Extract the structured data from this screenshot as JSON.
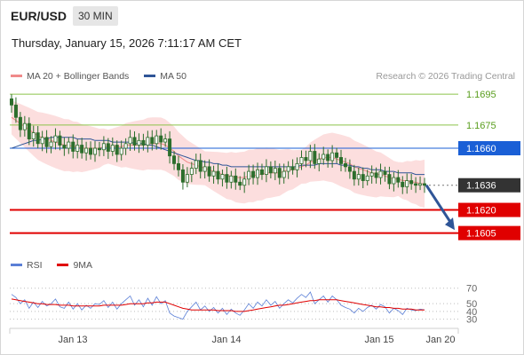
{
  "header": {
    "symbol": "EUR/USD",
    "timeframe": "30 MIN"
  },
  "datetime": "Thursday, January 15, 2026 7:11:17 AM CET",
  "credit": "Research © 2026 Trading Central",
  "price_legend": [
    {
      "label": "MA 20 + Bollinger Bands",
      "color": "#f08a8a"
    },
    {
      "label": "MA 50",
      "color": "#2f5597"
    }
  ],
  "rsi_legend": [
    {
      "label": "RSI",
      "color": "#5b7fd6"
    },
    {
      "label": "9MA",
      "color": "#e00000"
    }
  ],
  "colors": {
    "candle": "#2c6e2c",
    "resistance": "#8bc34a",
    "pivot": "#1a5fd6",
    "support": "#e00000",
    "arrow": "#2f5597",
    "current": "#333333"
  },
  "chart_data": [
    {
      "type": "candlestick",
      "x_ticks": [
        "Jan 13",
        "Jan 14",
        "Jan 15",
        "Jan 20"
      ],
      "ylim": [
        1.1595,
        1.1702
      ],
      "levels": [
        {
          "value": 1.1695,
          "label": "1.1695",
          "kind": "resistance"
        },
        {
          "value": 1.1675,
          "label": "1.1675",
          "kind": "resistance"
        },
        {
          "value": 1.166,
          "label": "1.1660",
          "kind": "pivot"
        },
        {
          "value": 1.1636,
          "label": "1.1636",
          "kind": "current"
        },
        {
          "value": 1.162,
          "label": "1.1620",
          "kind": "support"
        },
        {
          "value": 1.1605,
          "label": "1.1605",
          "kind": "support"
        }
      ],
      "forecast_arrow": {
        "from": 1.1636,
        "to": 1.1607
      },
      "closes": [
        1.1688,
        1.168,
        1.1672,
        1.1676,
        1.1666,
        1.167,
        1.1663,
        1.1667,
        1.1661,
        1.1664,
        1.1668,
        1.1662,
        1.166,
        1.1664,
        1.1658,
        1.1662,
        1.1657,
        1.166,
        1.1656,
        1.166,
        1.1659,
        1.1663,
        1.1658,
        1.1662,
        1.1656,
        1.166,
        1.1663,
        1.1667,
        1.1662,
        1.1665,
        1.1662,
        1.1667,
        1.1663,
        1.1668,
        1.1664,
        1.1666,
        1.1655,
        1.165,
        1.1646,
        1.1638,
        1.1643,
        1.1647,
        1.1652,
        1.1645,
        1.1648,
        1.1642,
        1.1645,
        1.164,
        1.1643,
        1.1638,
        1.1642,
        1.1638,
        1.1636,
        1.164,
        1.1645,
        1.1641,
        1.1646,
        1.1643,
        1.1648,
        1.1644,
        1.1647,
        1.1641,
        1.1645,
        1.1648,
        1.1646,
        1.165,
        1.1654,
        1.1652,
        1.1658,
        1.165,
        1.1653,
        1.1656,
        1.1652,
        1.1657,
        1.1654,
        1.165,
        1.1648,
        1.1645,
        1.164,
        1.1643,
        1.1639,
        1.1642,
        1.1644,
        1.1641,
        1.1645,
        1.1643,
        1.1637,
        1.1641,
        1.1638,
        1.1635,
        1.1639,
        1.1637,
        1.1636,
        1.1637,
        1.1636
      ],
      "series": [
        {
          "name": "MA 20 + Bollinger Bands",
          "values": [
            1.168,
            1.1678,
            1.1676,
            1.1674,
            1.1672,
            1.167,
            1.1668,
            1.1667,
            1.1666,
            1.1665,
            1.1664,
            1.1663,
            1.1662,
            1.1662,
            1.1661,
            1.1661,
            1.166,
            1.166,
            1.166,
            1.166,
            1.166,
            1.1661,
            1.1661,
            1.1661,
            1.1661,
            1.1661,
            1.1662,
            1.1662,
            1.1662,
            1.1662,
            1.1662,
            1.1663,
            1.1663,
            1.1663,
            1.1663,
            1.1662,
            1.166,
            1.1658,
            1.1655,
            1.1653,
            1.1651,
            1.165,
            1.1649,
            1.1648,
            1.1647,
            1.1646,
            1.1645,
            1.1644,
            1.1643,
            1.1642,
            1.1642,
            1.1641,
            1.1641,
            1.1641,
            1.1642,
            1.1642,
            1.1643,
            1.1643,
            1.1644,
            1.1644,
            1.1644,
            1.1644,
            1.1645,
            1.1646,
            1.1646,
            1.1647,
            1.1648,
            1.1649,
            1.1651,
            1.1652,
            1.1653,
            1.1654,
            1.1654,
            1.1654,
            1.1653,
            1.1652,
            1.1651,
            1.165,
            1.1648,
            1.1647,
            1.1646,
            1.1645,
            1.1644,
            1.1643,
            1.1643,
            1.1642,
            1.1641,
            1.164,
            1.164,
            1.1639,
            1.1639,
            1.1638,
            1.1638,
            1.1637,
            1.1637
          ]
        },
        {
          "name": "MA 50",
          "values": [
            1.166,
            1.1661,
            1.1662,
            1.1663,
            1.1664,
            1.1665,
            1.1665,
            1.1666,
            1.1666,
            1.1667,
            1.1667,
            1.1667,
            1.1667,
            1.1667,
            1.1667,
            1.1666,
            1.1666,
            1.1666,
            1.1666,
            1.1665,
            1.1665,
            1.1665,
            1.1665,
            1.1664,
            1.1664,
            1.1664,
            1.1664,
            1.1664,
            1.1663,
            1.1663,
            1.1663,
            1.1662,
            1.1662,
            1.1661,
            1.166,
            1.1659,
            1.1658,
            1.1657,
            1.1656,
            1.1655,
            1.1654,
            1.1653,
            1.1652,
            1.1652,
            1.1651,
            1.1651,
            1.165,
            1.165,
            1.1649,
            1.1649,
            1.1648,
            1.1648,
            1.1648,
            1.1648,
            1.1648,
            1.1648,
            1.1648,
            1.1648,
            1.1648,
            1.1648,
            1.1648,
            1.1648,
            1.1648,
            1.1648,
            1.1648,
            1.1648,
            1.1649,
            1.1649,
            1.1649,
            1.1649,
            1.165,
            1.165,
            1.165,
            1.165,
            1.165,
            1.1649,
            1.1649,
            1.1649,
            1.1648,
            1.1648,
            1.1647,
            1.1647,
            1.1646,
            1.1646,
            1.1646,
            1.1645,
            1.1645,
            1.1645,
            1.1644,
            1.1644,
            1.1644,
            1.1644,
            1.1643,
            1.1643,
            1.1643
          ]
        }
      ]
    },
    {
      "type": "line",
      "name": "RSI panel",
      "ylim": [
        25,
        80
      ],
      "y_ticks": [
        70,
        50,
        40,
        30
      ],
      "series": [
        {
          "name": "RSI",
          "values": [
            62,
            58,
            50,
            55,
            44,
            52,
            45,
            53,
            47,
            50,
            56,
            46,
            44,
            52,
            43,
            50,
            42,
            48,
            44,
            50,
            49,
            54,
            45,
            52,
            43,
            50,
            55,
            60,
            48,
            55,
            46,
            57,
            48,
            59,
            50,
            54,
            38,
            34,
            32,
            30,
            40,
            46,
            52,
            42,
            47,
            40,
            45,
            38,
            44,
            36,
            43,
            38,
            35,
            42,
            50,
            44,
            52,
            47,
            55,
            48,
            53,
            44,
            50,
            55,
            51,
            57,
            62,
            58,
            65,
            50,
            55,
            60,
            52,
            60,
            55,
            48,
            45,
            43,
            38,
            44,
            40,
            45,
            48,
            43,
            49,
            46,
            38,
            44,
            41,
            36,
            44,
            42,
            41,
            43,
            42
          ]
        },
        {
          "name": "9MA",
          "values": [
            56,
            55,
            54,
            53,
            52,
            51,
            50,
            50,
            49,
            49,
            49,
            48,
            48,
            48,
            47,
            47,
            47,
            47,
            47,
            47,
            47,
            48,
            48,
            48,
            48,
            48,
            49,
            50,
            50,
            50,
            50,
            51,
            51,
            52,
            52,
            52,
            50,
            48,
            46,
            44,
            43,
            42,
            42,
            42,
            42,
            42,
            42,
            41,
            41,
            41,
            41,
            40,
            40,
            40,
            41,
            42,
            43,
            44,
            45,
            46,
            47,
            48,
            48,
            49,
            50,
            51,
            52,
            53,
            54,
            54,
            55,
            55,
            55,
            55,
            55,
            54,
            53,
            52,
            51,
            50,
            49,
            48,
            47,
            46,
            46,
            45,
            45,
            44,
            44,
            43,
            43,
            43,
            42,
            42,
            42
          ]
        }
      ]
    }
  ]
}
